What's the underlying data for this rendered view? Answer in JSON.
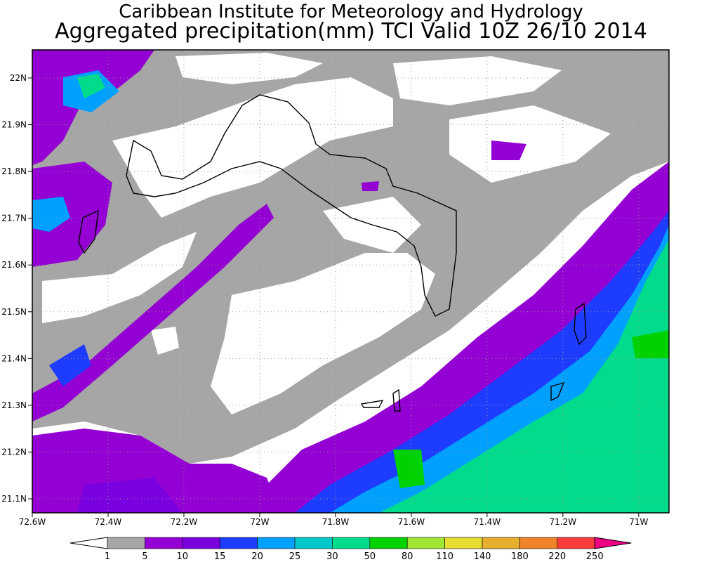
{
  "title": {
    "line1": "Caribbean Institute for Meteorology and Hydrology",
    "line2": "Aggregated precipitation(mm) TCI Valid 10Z 26/10 2014"
  },
  "axes": {
    "x_ticks": [
      "72.6W",
      "72.4W",
      "72.2W",
      "72W",
      "71.8W",
      "71.6W",
      "71.4W",
      "71.2W",
      "71W"
    ],
    "y_ticks": [
      "22N",
      "21.9N",
      "21.8N",
      "21.7N",
      "21.6N",
      "21.5N",
      "21.4N",
      "21.3N",
      "21.2N",
      "21.1N"
    ],
    "lon_range": [
      -72.6,
      -70.92
    ],
    "lat_range": [
      21.07,
      22.06
    ]
  },
  "colorbar": {
    "labels": [
      "1",
      "5",
      "10",
      "15",
      "20",
      "25",
      "30",
      "50",
      "80",
      "110",
      "140",
      "180",
      "220",
      "250"
    ],
    "colors": [
      "#a6a6a6",
      "#9400d3",
      "#7a00e0",
      "#1e3cff",
      "#00a0ff",
      "#00c8c8",
      "#00dc8c",
      "#00d200",
      "#a0e632",
      "#e6dc32",
      "#e6af2d",
      "#f08228",
      "#fa3c3c",
      "#f00082"
    ],
    "under_color": "#ffffff",
    "over_color": "#f00082"
  },
  "colors": {
    "grid": "#999999",
    "frame": "#000000",
    "coast": "#000000"
  }
}
